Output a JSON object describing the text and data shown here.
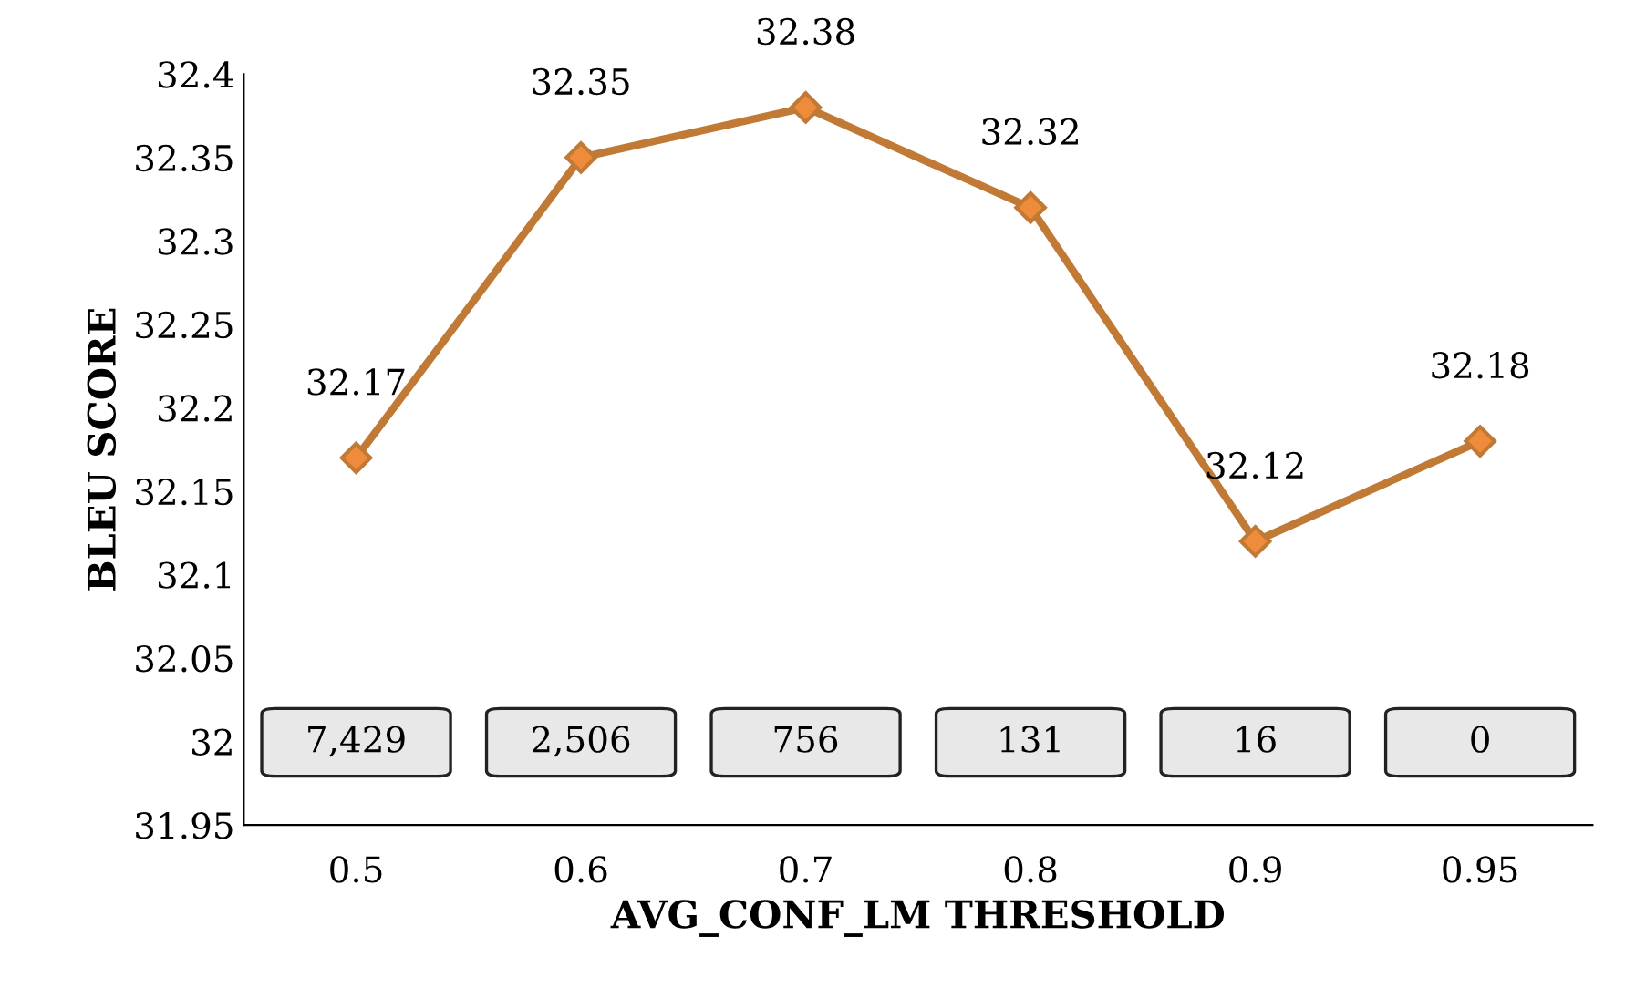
{
  "chart_data": {
    "type": "line",
    "xlabel": "AVG_CONF_LM THRESHOLD",
    "ylabel": "BLEU SCORE",
    "categories": [
      "0.5",
      "0.6",
      "0.7",
      "0.8",
      "0.9",
      "0.95"
    ],
    "series": [
      {
        "color": "#c07a35",
        "values": [
          32.17,
          32.35,
          32.38,
          32.32,
          32.12,
          32.18
        ]
      }
    ],
    "marker": "diamond",
    "line_style": "solid",
    "data_labels": true,
    "grid": false,
    "legend": false,
    "ylim": [
      31.95,
      32.4
    ],
    "yticks": [
      31.95,
      32,
      32.05,
      32.1,
      32.15,
      32.2,
      32.25,
      32.3,
      32.35,
      32.4
    ],
    "annotations": [
      "7,429",
      "2,506",
      "756",
      "131",
      "16",
      "0"
    ]
  }
}
